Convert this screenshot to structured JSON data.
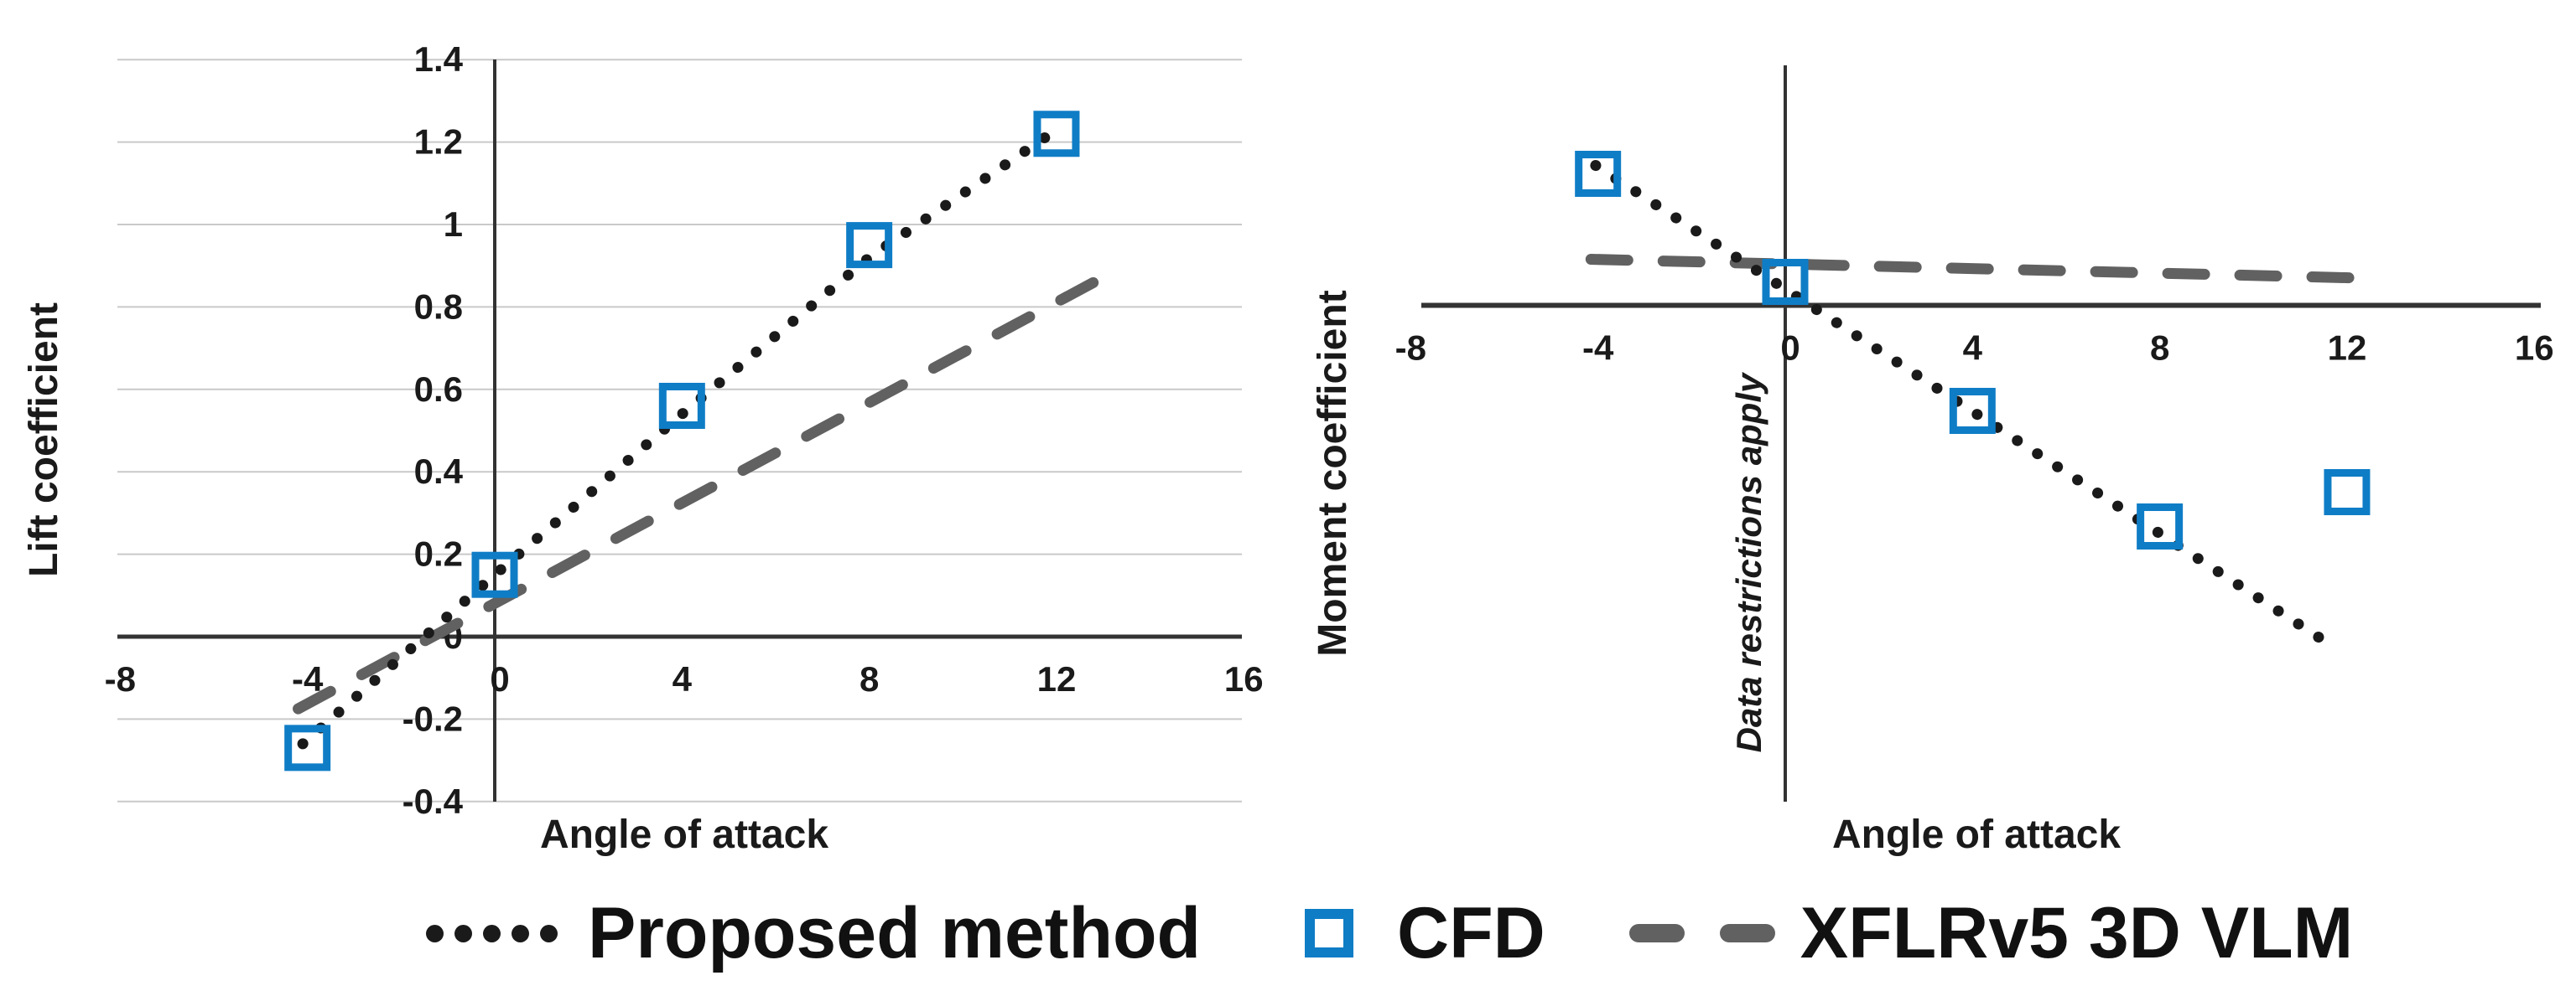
{
  "figure": {
    "background": "#ffffff",
    "description": "Two aerodynamic validation charts comparing Proposed method, CFD and XFLRv5 3D VLM"
  },
  "colors": {
    "cfd_blue": "#0f7dc6",
    "proposed_black": "#1a1a1a",
    "xflr_gray": "#616161",
    "gridline": "#c9c9c9",
    "axis": "#333333",
    "tick_label": "#1a1a1a",
    "annotation_gray": "#8a8a8a"
  },
  "legend": {
    "items": [
      {
        "label": "Proposed method",
        "marker": "dotted-line-sample"
      },
      {
        "label": "CFD",
        "marker": "open-square-sample"
      },
      {
        "label": "XFLRv5 3D VLM",
        "marker": "dashed-line-sample"
      }
    ]
  },
  "chart_data": [
    {
      "id": "lift",
      "type": "scatter",
      "title": "",
      "xlabel": "Angle of attack",
      "ylabel": "Lift coefficient",
      "xlim": [
        -8,
        16
      ],
      "ylim": [
        -0.45,
        1.45
      ],
      "grid": "horizontal",
      "x_ticks": [
        {
          "v": -8,
          "label": "-8"
        },
        {
          "v": -4,
          "label": "-4"
        },
        {
          "v": 0,
          "label": "0"
        },
        {
          "v": 4,
          "label": "4"
        },
        {
          "v": 8,
          "label": "8"
        },
        {
          "v": 12,
          "label": "12"
        },
        {
          "v": 16,
          "label": "16"
        }
      ],
      "y_ticks": [
        {
          "v": -0.4,
          "label": "-0.4"
        },
        {
          "v": -0.2,
          "label": "-0.2"
        },
        {
          "v": 0,
          "label": "0"
        },
        {
          "v": 0.2,
          "label": "0.2"
        },
        {
          "v": 0.4,
          "label": "0.4"
        },
        {
          "v": 0.6,
          "label": "0.6"
        },
        {
          "v": 0.8,
          "label": "0.8"
        },
        {
          "v": 1,
          "label": "1"
        },
        {
          "v": 1.2,
          "label": "1.2"
        },
        {
          "v": 1.4,
          "label": "1.4"
        }
      ],
      "series": [
        {
          "name": "XFLRv5 3D VLM",
          "style": "dashed",
          "color_key": "xflr_gray",
          "points": [
            [
              -4.2,
              -0.175
            ],
            [
              12.8,
              0.86
            ]
          ]
        },
        {
          "name": "Proposed method",
          "style": "dotted",
          "color_key": "proposed_black",
          "points": [
            [
              -4.1,
              -0.26
            ],
            [
              0,
              0.15
            ],
            [
              4,
              0.54
            ],
            [
              8,
              0.92
            ],
            [
              12,
              1.23
            ]
          ]
        },
        {
          "name": "CFD",
          "style": "open-square",
          "color_key": "cfd_blue",
          "points": [
            [
              -4,
              -0.27
            ],
            [
              0,
              0.15
            ],
            [
              4,
              0.56
            ],
            [
              8,
              0.95
            ],
            [
              12,
              1.22
            ]
          ]
        }
      ]
    },
    {
      "id": "moment",
      "type": "scatter",
      "title": "",
      "xlabel": "Angle of attack",
      "ylabel": "Moment coefficient",
      "xlim": [
        -8,
        16
      ],
      "ylim": [
        -6,
        2.8
      ],
      "grid": "none",
      "y_axis_values_shown": false,
      "y_units": "relative (axis values not shown)",
      "annotation": "Data restrictions apply",
      "x_ticks": [
        {
          "v": -8,
          "label": "-8"
        },
        {
          "v": -4,
          "label": "-4"
        },
        {
          "v": 0,
          "label": "0"
        },
        {
          "v": 4,
          "label": "4"
        },
        {
          "v": 8,
          "label": "8"
        },
        {
          "v": 12,
          "label": "12"
        },
        {
          "v": 16,
          "label": "16"
        }
      ],
      "y_ticks": [],
      "series": [
        {
          "name": "XFLRv5 3D VLM",
          "style": "dashed",
          "color_key": "xflr_gray",
          "points": [
            [
              -4.15,
              0.55
            ],
            [
              12.7,
              0.32
            ]
          ]
        },
        {
          "name": "Proposed method",
          "style": "dotted",
          "color_key": "proposed_black",
          "points": [
            [
              -4.05,
              1.67
            ],
            [
              11.8,
              -4.11
            ]
          ]
        },
        {
          "name": "CFD",
          "style": "open-square",
          "color_key": "cfd_blue",
          "points": [
            [
              -4,
              1.57
            ],
            [
              0,
              0.28
            ],
            [
              4,
              -1.26
            ],
            [
              8,
              -2.64
            ],
            [
              12,
              -2.23
            ]
          ]
        }
      ]
    }
  ]
}
